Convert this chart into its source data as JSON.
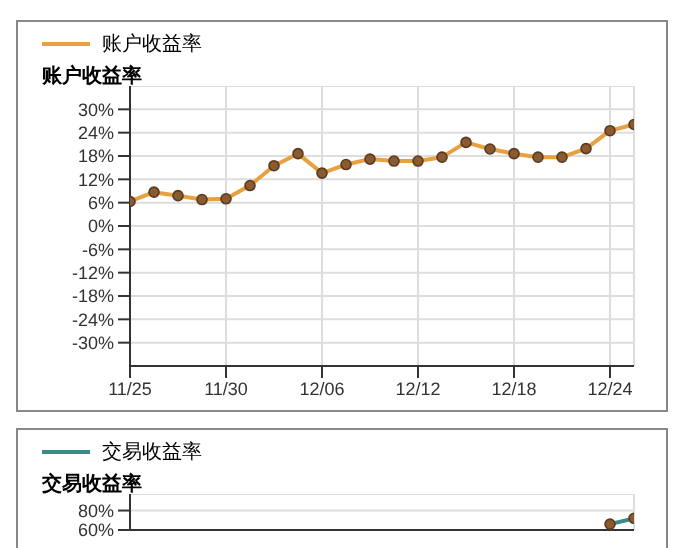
{
  "chart_data": [
    {
      "type": "line",
      "ylabel": "账户收益率",
      "legend": "top left",
      "grid": true,
      "marker": "circle",
      "categories": [
        "11/25",
        null,
        null,
        null,
        "11/30",
        null,
        null,
        null,
        "12/06",
        null,
        null,
        null,
        "12/12",
        null,
        null,
        null,
        "12/18",
        null,
        null,
        null,
        "12/24",
        null
      ],
      "series": [
        {
          "name": "账户收益率",
          "color": "#e8a040",
          "values": [
            6.3,
            8.7,
            7.8,
            6.8,
            7.0,
            10.4,
            15.5,
            18.6,
            13.6,
            15.8,
            17.2,
            16.7,
            16.7,
            17.7,
            21.5,
            19.8,
            18.6,
            17.7,
            17.7,
            19.9,
            24.5,
            26.1
          ]
        }
      ],
      "ylim": [
        -36,
        36
      ],
      "yticks": [
        {
          "value": -30,
          "label": "-30%"
        },
        {
          "value": -24,
          "label": "-24%"
        },
        {
          "value": -18,
          "label": "-18%"
        },
        {
          "value": -12,
          "label": "-12%"
        },
        {
          "value": -6,
          "label": "-6%"
        },
        {
          "value": 0,
          "label": "0%"
        },
        {
          "value": 6,
          "label": "6%"
        },
        {
          "value": 12,
          "label": "12%"
        },
        {
          "value": 18,
          "label": "18%"
        },
        {
          "value": 24,
          "label": "24%"
        },
        {
          "value": 30,
          "label": "30%"
        }
      ]
    },
    {
      "type": "line",
      "ylabel": "交易收益率",
      "legend": "top left",
      "grid": true,
      "marker": "circle",
      "tick_labels": "y",
      "categories": [
        null,
        null,
        null,
        null,
        null,
        null,
        null,
        null,
        null,
        null,
        null,
        null,
        null,
        null,
        null,
        null,
        null,
        null,
        null,
        null,
        null,
        null
      ],
      "series": [
        {
          "name": "交易收益率",
          "color": "#3a8a8a",
          "values": [
            null,
            null,
            null,
            null,
            null,
            null,
            null,
            null,
            null,
            null,
            null,
            null,
            null,
            null,
            null,
            null,
            null,
            null,
            null,
            null,
            66,
            72
          ]
        }
      ],
      "ylim": [
        60,
        97
      ],
      "yticks": [
        {
          "value": 60,
          "label": "60%"
        },
        {
          "value": 80,
          "label": "80%"
        }
      ]
    }
  ]
}
